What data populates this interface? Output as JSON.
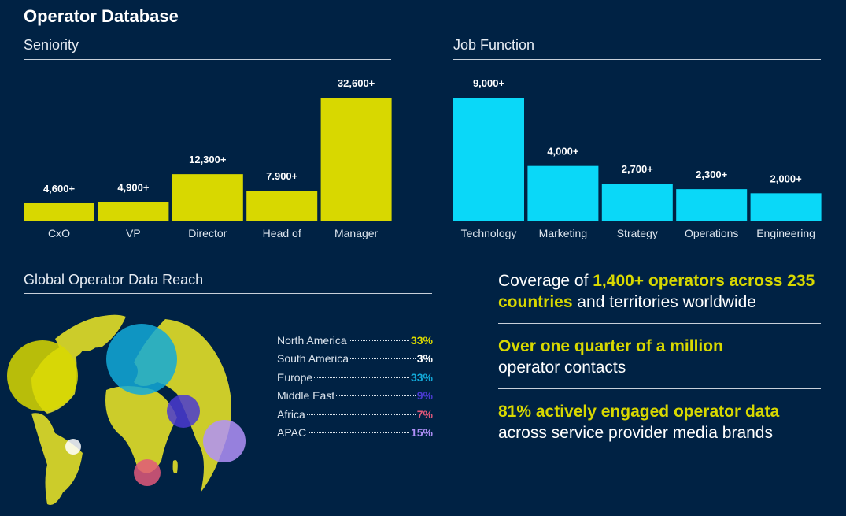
{
  "title": "Operator Database",
  "chart_data": [
    {
      "type": "bar",
      "title": "Seniority",
      "categories": [
        "CxO",
        "VP",
        "Director",
        "Head of",
        "Manager"
      ],
      "values": [
        4600,
        4900,
        12300,
        7900,
        32600
      ],
      "labels": [
        "4,600+",
        "4,900+",
        "12,300+",
        "7.900+",
        "32,600+"
      ],
      "color": "#d8d800"
    },
    {
      "type": "bar",
      "title": "Job Function",
      "categories": [
        "Technology",
        "Marketing",
        "Strategy",
        "Operations",
        "Engineering"
      ],
      "values": [
        9000,
        4000,
        2700,
        2300,
        2000
      ],
      "labels": [
        "9,000+",
        "4,000+",
        "2,700+",
        "2,300+",
        "2,000+"
      ],
      "color": "#0ad8f8"
    }
  ],
  "reach": {
    "title": "Global Operator Data Reach",
    "regions": [
      {
        "name": "North America",
        "pct": "33%",
        "color": "#d8d800"
      },
      {
        "name": "South America",
        "pct": "3%",
        "color": "#ffffff"
      },
      {
        "name": "Europe",
        "pct": "33%",
        "color": "#12a9d8"
      },
      {
        "name": "Middle East",
        "pct": "9%",
        "color": "#4a3ad0"
      },
      {
        "name": "Africa",
        "pct": "7%",
        "color": "#e0587a"
      },
      {
        "name": "APAC",
        "pct": "15%",
        "color": "#b090f8"
      }
    ]
  },
  "stats": [
    {
      "pre": "Coverage of ",
      "hl": "1,400+ operators across 235 countries",
      "post": " and territories worldwide"
    },
    {
      "pre": "",
      "hl": "Over one quarter of a million",
      "post": " operator contacts"
    },
    {
      "pre": "",
      "hl": "81% actively engaged operator data",
      "post": " across service provider media brands"
    }
  ]
}
